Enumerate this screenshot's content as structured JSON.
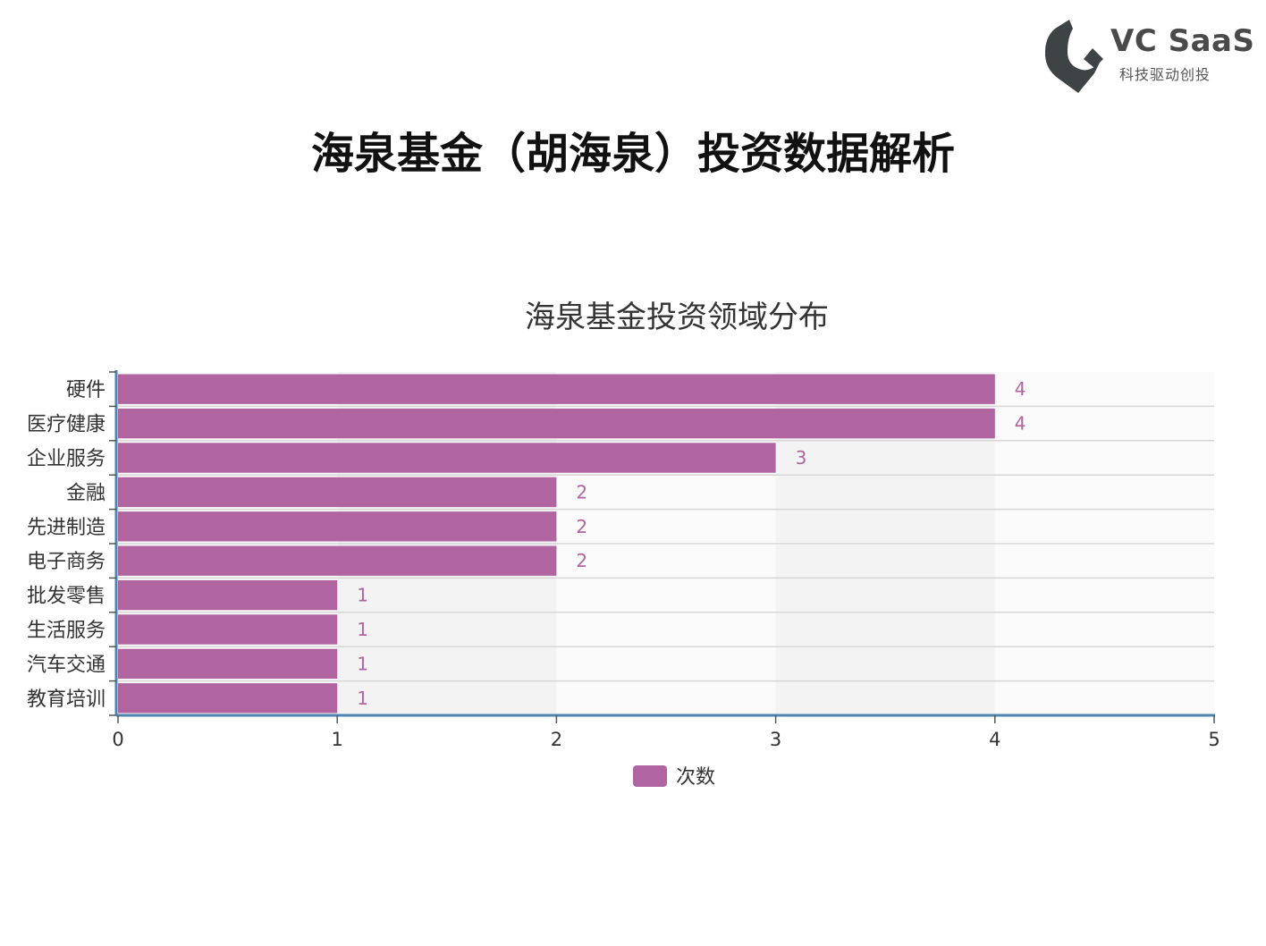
{
  "logo": {
    "name": "VC SaaS",
    "tagline": "科技驱动创投"
  },
  "page_title": "海泉基金（胡海泉）投资数据解析",
  "chart_data": {
    "type": "bar",
    "orientation": "horizontal",
    "title": "海泉基金投资领域分布",
    "categories": [
      "硬件",
      "医疗健康",
      "企业服务",
      "金融",
      "先进制造",
      "电子商务",
      "批发零售",
      "生活服务",
      "汽车交通",
      "教育培训"
    ],
    "series": [
      {
        "name": "次数",
        "values": [
          4,
          4,
          3,
          2,
          2,
          2,
          1,
          1,
          1,
          1
        ],
        "color": "#b065a0"
      }
    ],
    "xlim": [
      0,
      5
    ],
    "x_ticks": [
      "0",
      "1",
      "2",
      "3",
      "4",
      "5"
    ],
    "legend": "bottom",
    "grid": true,
    "colors": {
      "bar": "#b065a0",
      "axis": "#4a86b0",
      "band": "#f3f3f3"
    }
  }
}
